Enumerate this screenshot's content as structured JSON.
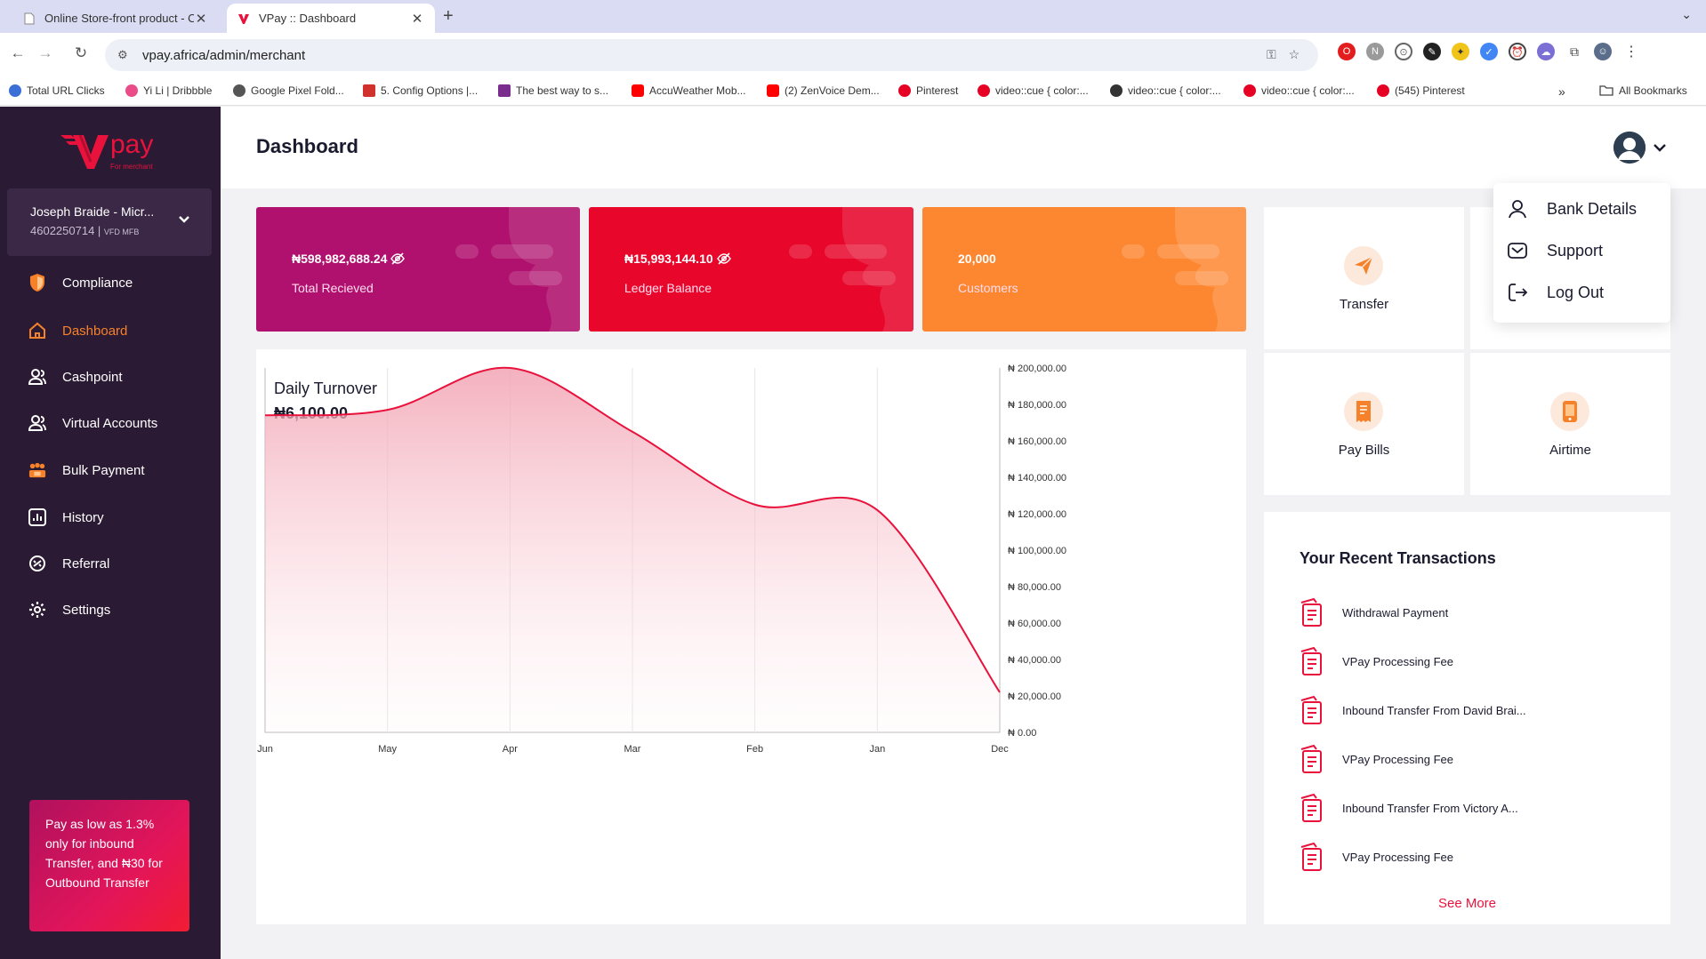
{
  "browser": {
    "tabs": [
      {
        "title": "Online Store-front product - C",
        "active": false
      },
      {
        "title": "VPay :: Dashboard",
        "active": true
      }
    ],
    "url": "vpay.africa/admin/merchant",
    "bookmarks": [
      {
        "label": "Total URL Clicks",
        "color": "#3b6fd6"
      },
      {
        "label": "Yi Li | Dribbble",
        "color": "#ea4c89"
      },
      {
        "label": "Google Pixel Fold...",
        "color": "#555555"
      },
      {
        "label": "5. Config Options |...",
        "color": "#d0312d"
      },
      {
        "label": "The best way to s...",
        "color": "#7b2d8e"
      },
      {
        "label": "AccuWeather Mob...",
        "color": "#ff0000"
      },
      {
        "label": "(2) ZenVoice Dem...",
        "color": "#ff0000"
      },
      {
        "label": "Pinterest",
        "color": "#e60023"
      },
      {
        "label": "video::cue { color:...",
        "color": "#e60023"
      },
      {
        "label": "video::cue { color:...",
        "color": "#333333"
      },
      {
        "label": "video::cue { color:...",
        "color": "#e60023"
      },
      {
        "label": "(545) Pinterest",
        "color": "#e60023"
      }
    ],
    "all_bookmarks": "All Bookmarks"
  },
  "sidebar": {
    "logo_text": "pay",
    "logo_sub": "For merchant",
    "account_name": "Joseph Braide - Micr...",
    "account_number": "4602250714 |",
    "account_bank": "VFD MFB",
    "items": [
      {
        "label": "Compliance",
        "icon": "shield-icon",
        "active": false
      },
      {
        "label": "Dashboard",
        "icon": "home-icon",
        "active": true
      },
      {
        "label": "Cashpoint",
        "icon": "users-icon",
        "active": false
      },
      {
        "label": "Virtual Accounts",
        "icon": "users-icon",
        "active": false
      },
      {
        "label": "Bulk Payment",
        "icon": "group-icon",
        "active": false
      },
      {
        "label": "History",
        "icon": "chart-icon",
        "active": false
      },
      {
        "label": "Referral",
        "icon": "referral-icon",
        "active": false
      },
      {
        "label": "Settings",
        "icon": "gear-icon",
        "active": false
      }
    ],
    "promo": "Pay as low as 1.3% only for inbound Transfer, and ₦30 for Outbound Transfer"
  },
  "header": {
    "title": "Dashboard"
  },
  "stats": [
    {
      "amount": "₦598,982,688.24",
      "label": "Total Recieved",
      "color": "#b0116e"
    },
    {
      "amount": "₦15,993,144.10",
      "label": "Ledger Balance",
      "color": "#e8062b"
    },
    {
      "amount": "20,000",
      "label": "Customers",
      "color": "#fd8630"
    }
  ],
  "turnover": {
    "title": "Daily Turnover",
    "value": "₦6,100.00"
  },
  "chart_data": {
    "type": "area",
    "title": "Daily Turnover",
    "x": [
      "Jun",
      "May",
      "Apr",
      "Mar",
      "Feb",
      "Jan",
      "Dec"
    ],
    "series": [
      {
        "values": [
          174000,
          177000,
          200000,
          165000,
          125000,
          122000,
          22000
        ]
      }
    ],
    "y_ticks": [
      "₦ 200,000.00",
      "₦ 180,000.00",
      "₦ 160,000.00",
      "₦ 140,000.00",
      "₦ 120,000.00",
      "₦ 100,000.00",
      "₦ 80,000.00",
      "₦ 60,000.00",
      "₦ 40,000.00",
      "₦ 20,000.00",
      "₦ 0.00"
    ],
    "ylim": [
      0,
      200000
    ],
    "y_axis_side": "right",
    "grid": "vertical",
    "line_color": "#e8123c"
  },
  "quick_actions": [
    {
      "label": "Transfer",
      "icon": "send-icon"
    },
    {
      "label": "Pay Bills",
      "icon": "bill-icon"
    },
    {
      "label": "Airtime",
      "icon": "phone-icon"
    }
  ],
  "transactions": {
    "title": "Your Recent Transactions",
    "items": [
      "Withdrawal Payment",
      "VPay Processing Fee",
      "Inbound Transfer From David Brai...",
      "VPay Processing Fee",
      "Inbound Transfer From Victory A...",
      "VPay Processing Fee"
    ],
    "see_more": "See More"
  },
  "profile_menu": [
    {
      "label": "Bank Details",
      "icon": "user-icon"
    },
    {
      "label": "Support",
      "icon": "mail-icon"
    },
    {
      "label": "Log Out",
      "icon": "logout-icon"
    }
  ]
}
